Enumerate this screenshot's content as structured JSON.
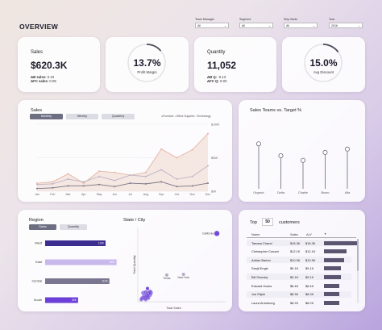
{
  "header": {
    "title": "OVERVIEW"
  },
  "filters": [
    {
      "label": "Team Manager",
      "value": "All"
    },
    {
      "label": "Segment",
      "value": "All"
    },
    {
      "label": "Ship Mode",
      "value": "All"
    },
    {
      "label": "Year",
      "value": "2016"
    }
  ],
  "kpis": {
    "sales": {
      "label": "Sales",
      "value": "$620.3K",
      "q_label": "ΔB sales:",
      "q_value": "0.10",
      "fc_label": "ΔFC sales:",
      "fc_value": "0.05"
    },
    "profit_margin": {
      "value": "13.7%",
      "label": "Profit Margin",
      "fraction": 0.137
    },
    "quantity": {
      "label": "Quantity",
      "value": "11,052",
      "q_label": "ΔB Q:",
      "q_value": "-0.13",
      "fc_label": "ΔFC Q:",
      "fc_value": "0.03"
    },
    "avg_discount": {
      "value": "15.0%",
      "label": "Avg Discount",
      "fraction": 0.15
    }
  },
  "sales_chart": {
    "title": "Sales",
    "buttons": [
      "Monthly",
      "Weekly",
      "Quarterly"
    ],
    "active_button": "Monthly",
    "legend": [
      "Furniture",
      "Office Supplies",
      "Technology"
    ],
    "legend_colors": [
      "#7a7686",
      "#bdb6c8",
      "#e6b3a6"
    ]
  },
  "teams_chart": {
    "title": "Sales Teams vs. Target %"
  },
  "region_panel": {
    "title": "Region",
    "buttons": [
      "Sales",
      "Quantity"
    ],
    "active_button": "Sales",
    "scatter_title": "State / City",
    "scatter_xlabel": "Total Sales",
    "scatter_ylabel": "Total Quantity",
    "labels": {
      "california": "California",
      "texas": "Texas",
      "new_york": "New York",
      "ohio": "Ohio"
    }
  },
  "customers": {
    "top_label": "Top",
    "count": "50",
    "suffix_label": "customers",
    "columns": [
      "Name",
      "Sales",
      "ΔLY"
    ],
    "rows": [
      {
        "name": "Tamara Chand",
        "sales": "$18.3K",
        "dly": "$18.3K",
        "share": 0.98
      },
      {
        "name": "Christopher Conant",
        "sales": "$12.1K",
        "dly": "$12.1K",
        "share": 0.66
      },
      {
        "name": "Adrian Barton",
        "sales": "$10.9K",
        "dly": "$10.9K",
        "share": 0.6
      },
      {
        "name": "Sanjit Engle",
        "sales": "$9.1K",
        "dly": "$9.1K",
        "share": 0.5
      },
      {
        "name": "Bill Shonely",
        "sales": "$9.1K",
        "dly": "$9.1K",
        "share": 0.5
      },
      {
        "name": "Edward Hooks",
        "sales": "$8.4K",
        "dly": "$8.4K",
        "share": 0.46
      },
      {
        "name": "Joe Elijah",
        "sales": "$8.3K",
        "dly": "$8.3K",
        "share": 0.45
      },
      {
        "name": "Laura Armstrong",
        "sales": "$8.2K",
        "dly": "$8.2K",
        "share": 0.45
      }
    ]
  },
  "chart_data": [
    {
      "type": "area",
      "title": "Sales",
      "categories": [
        "Jan",
        "Feb",
        "Mar",
        "Apr",
        "May",
        "Jun",
        "Jul",
        "Aug",
        "Sep",
        "Oct",
        "Nov",
        "Dec"
      ],
      "ylim": [
        0,
        100
      ],
      "ytick_labels": [
        "$0K",
        "$50K",
        "$100K"
      ],
      "series": [
        {
          "name": "Furniture",
          "values": [
            4,
            5,
            8,
            8,
            10,
            7,
            12,
            11,
            14,
            7,
            8,
            12
          ]
        },
        {
          "name": "Office Supplies",
          "values": [
            10,
            11,
            18,
            14,
            22,
            16,
            24,
            22,
            32,
            18,
            22,
            38
          ]
        },
        {
          "name": "Technology",
          "values": [
            12,
            14,
            26,
            12,
            30,
            28,
            24,
            28,
            63,
            50,
            62,
            86
          ]
        }
      ],
      "colors": [
        "#7a7686",
        "#bdb6c8",
        "#e6b3a6"
      ],
      "legend_position": "top-right"
    },
    {
      "type": "scatter",
      "title": "Sales Teams vs. Target %",
      "categories": [
        "Organic",
        "Delta",
        "Charlie",
        "Bravo",
        "Alfa"
      ],
      "values": [
        68,
        50,
        43,
        55,
        60
      ],
      "ylim": [
        0,
        100
      ],
      "grid": false
    },
    {
      "type": "bar",
      "title": "Region",
      "categories": [
        "West",
        "East",
        "Central",
        "South"
      ],
      "values": [
        110,
        130,
        117,
        60
      ],
      "value_labels": [
        "110K",
        "130K",
        "117K",
        "60K"
      ],
      "colors": [
        "#3c2d91",
        "#c8b8ec",
        "#7b7690",
        "#6b3fd8"
      ],
      "xlim": [
        0,
        135
      ]
    },
    {
      "type": "scatter",
      "title": "State / City",
      "xlabel": "Total Sales",
      "ylabel": "Total Quantity",
      "points": [
        {
          "label": "California",
          "x": 90,
          "y": 92,
          "size": 3
        },
        {
          "label": "Texas",
          "x": 33,
          "y": 36
        },
        {
          "label": "New York",
          "x": 52,
          "y": 37
        },
        {
          "label": "Ohio",
          "x": 11,
          "y": 18
        },
        {
          "x": 9,
          "y": 13
        },
        {
          "x": 12,
          "y": 11
        },
        {
          "x": 10,
          "y": 9
        },
        {
          "x": 14,
          "y": 9
        },
        {
          "x": 7,
          "y": 8
        },
        {
          "x": 11,
          "y": 7
        },
        {
          "x": 5,
          "y": 5
        },
        {
          "x": 8,
          "y": 5
        },
        {
          "x": 12,
          "y": 5
        },
        {
          "x": 4,
          "y": 3
        },
        {
          "x": 9,
          "y": 3
        },
        {
          "x": 14,
          "y": 14
        },
        {
          "x": 15,
          "y": 12
        },
        {
          "x": 6,
          "y": 12
        }
      ],
      "color": "#6b3fd8"
    }
  ]
}
